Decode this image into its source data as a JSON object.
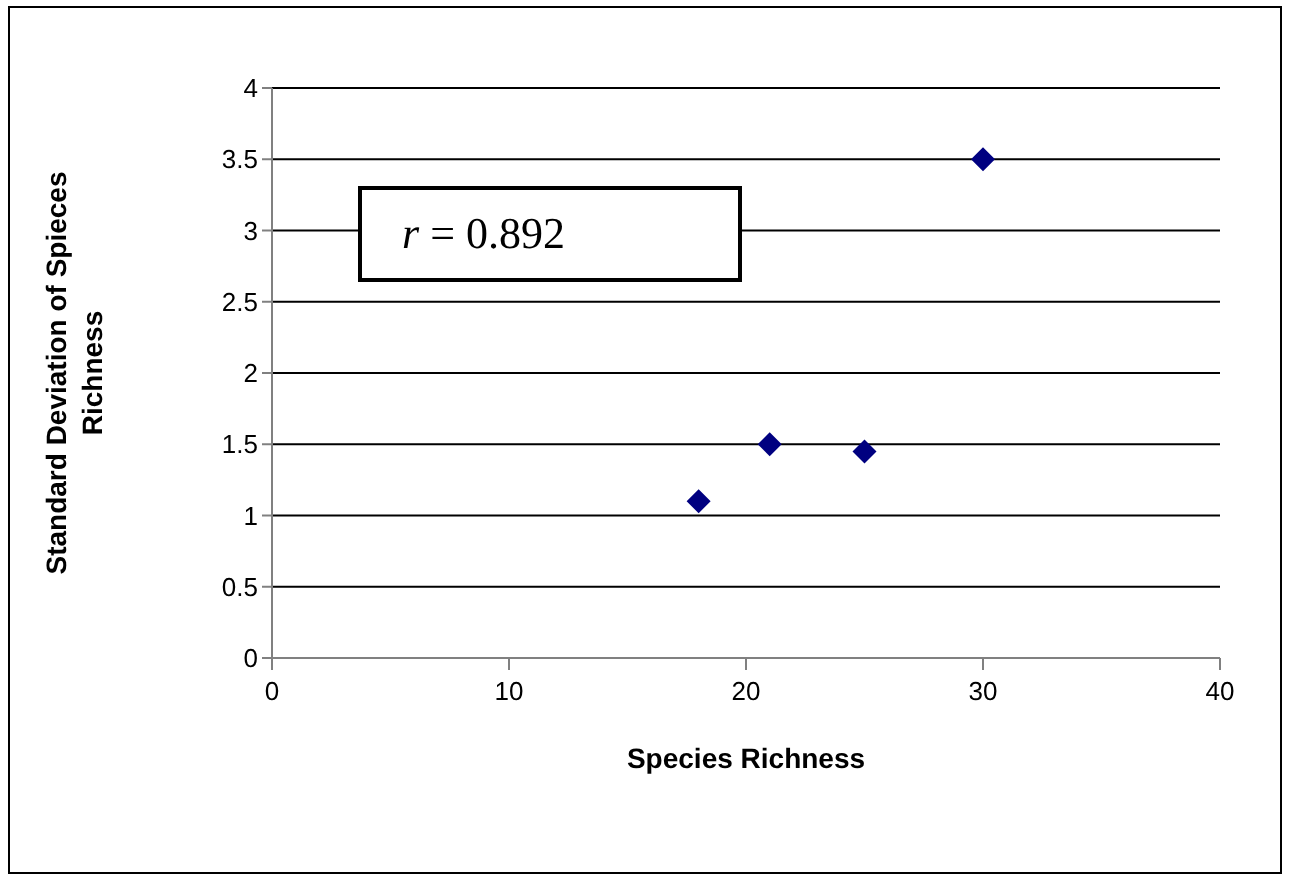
{
  "chart_data": {
    "type": "scatter",
    "xlabel": "Species Richness",
    "ylabel": "Standard Deviation of Spieces Richness",
    "x": [
      18,
      21,
      25,
      30
    ],
    "values": [
      1.1,
      1.5,
      1.45,
      3.5
    ],
    "color": "#000080",
    "marker": "diamond",
    "xlim": [
      0,
      40
    ],
    "xticks": [
      0,
      10,
      20,
      30,
      40
    ],
    "ylim": [
      0,
      4
    ],
    "yticks": [
      0,
      0.5,
      1,
      1.5,
      2,
      2.5,
      3,
      3.5,
      4
    ],
    "grid": "y",
    "annotations": [
      "r = 0.892"
    ]
  }
}
